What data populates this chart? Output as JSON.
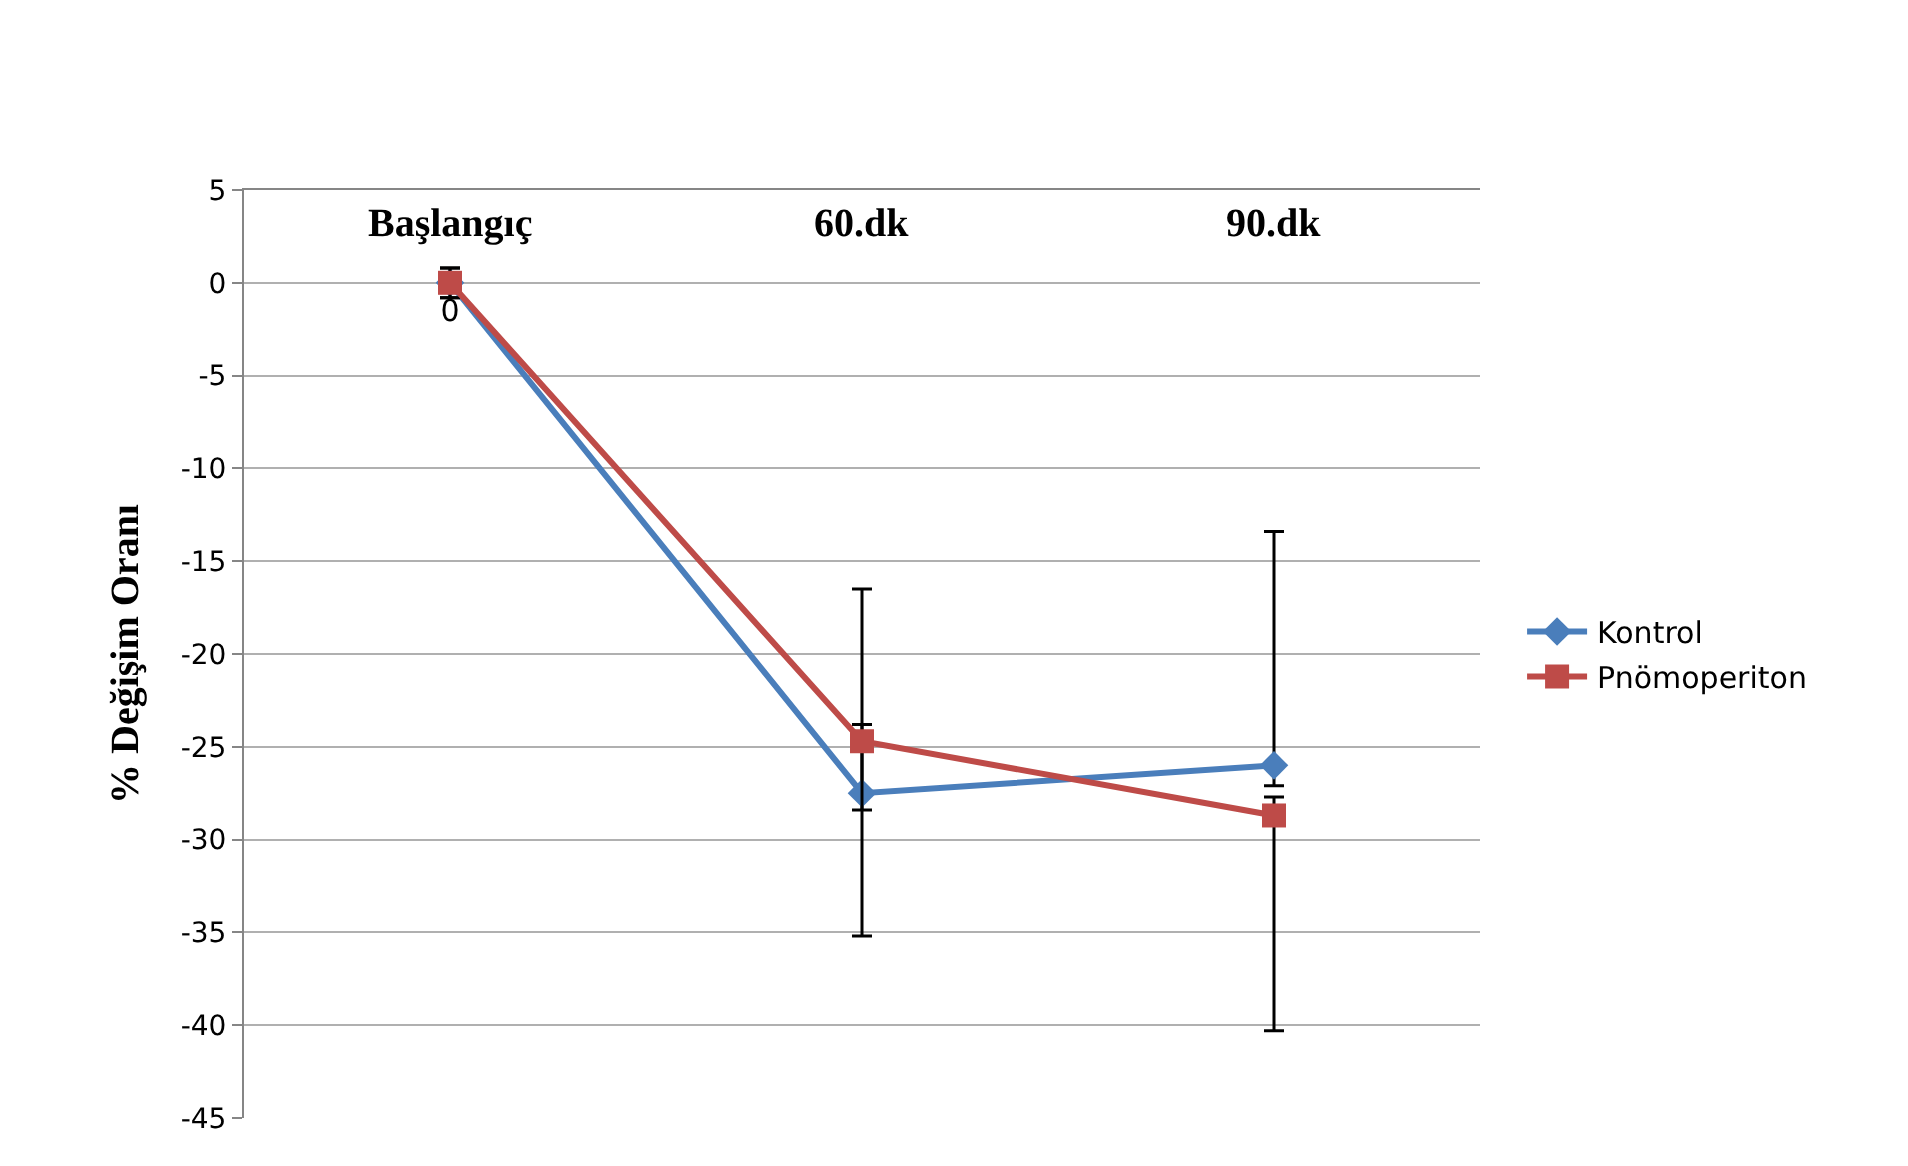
{
  "chart_data": {
    "type": "line",
    "ylabel": "% Değişim Oranı",
    "categories": [
      "Başlangıç",
      "60.dk",
      "90.dk"
    ],
    "series": [
      {
        "name": "Kontrol",
        "color": "#4a7ebb",
        "marker": "diamond",
        "values": [
          0,
          -27.5,
          -26.0
        ],
        "errors": [
          0.8,
          [
            -35.2,
            -23.8
          ],
          [
            -27.1,
            -13.4
          ]
        ],
        "value_labels": [
          "0",
          null,
          null
        ]
      },
      {
        "name": "Pnömoperiton",
        "color": "#be4b48",
        "marker": "square",
        "values": [
          0,
          -24.7,
          -28.7
        ],
        "errors": [
          0.8,
          [
            -28.4,
            -16.5
          ],
          [
            -40.3,
            -27.7
          ]
        ]
      }
    ],
    "ylim": [
      -45,
      5
    ],
    "yticks": [
      -45,
      -40,
      -35,
      -30,
      -25,
      -20,
      -15,
      -10,
      -5,
      0,
      5
    ],
    "grid": "y",
    "legend": "right"
  }
}
